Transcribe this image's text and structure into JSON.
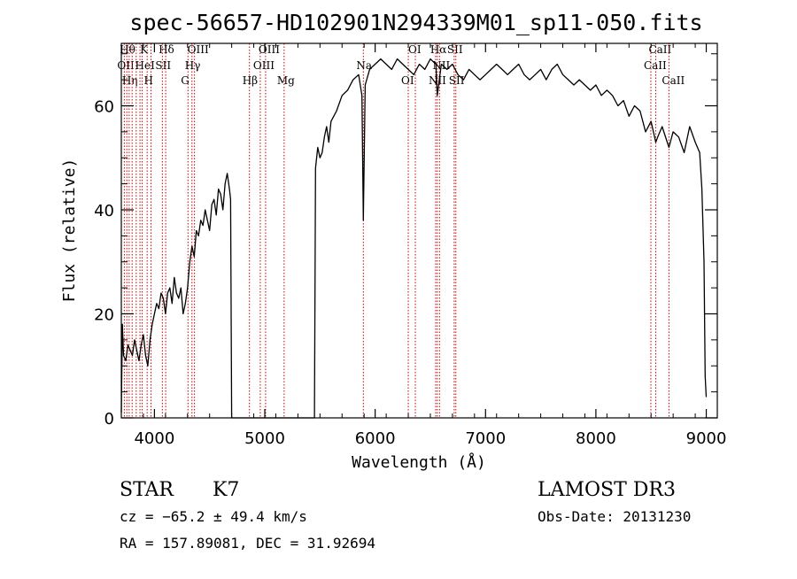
{
  "chart_data": {
    "type": "line",
    "title": "spec-56657-HD102901N294339M01_sp11-050.fits",
    "xlabel": "Wavelength (Å)",
    "ylabel": "Flux (relative)",
    "xlim": [
      3700,
      9100
    ],
    "ylim": [
      0,
      72
    ],
    "xticks": [
      4000,
      5000,
      6000,
      7000,
      8000,
      9000
    ],
    "yticks": [
      0,
      20,
      40,
      60
    ],
    "grid": false,
    "series": [
      {
        "line_color": "#000000",
        "x": [
          3700,
          3710,
          3720,
          3740,
          3760,
          3780,
          3800,
          3820,
          3840,
          3860,
          3880,
          3900,
          3920,
          3940,
          3960,
          3980,
          4000,
          4020,
          4040,
          4060,
          4080,
          4100,
          4120,
          4140,
          4160,
          4180,
          4200,
          4220,
          4240,
          4260,
          4280,
          4300,
          4320,
          4340,
          4360,
          4380,
          4400,
          4420,
          4440,
          4460,
          4480,
          4500,
          4520,
          4540,
          4560,
          4580,
          4600,
          4620,
          4640,
          4660,
          4680,
          4690,
          4700,
          4720,
          5450,
          5460,
          5480,
          5500,
          5520,
          5540,
          5560,
          5580,
          5600,
          5650,
          5700,
          5750,
          5800,
          5850,
          5880,
          5893,
          5910,
          5950,
          6000,
          6050,
          6100,
          6150,
          6200,
          6250,
          6300,
          6350,
          6400,
          6450,
          6500,
          6550,
          6563,
          6600,
          6650,
          6700,
          6750,
          6800,
          6850,
          6900,
          6950,
          7000,
          7050,
          7100,
          7150,
          7200,
          7250,
          7300,
          7350,
          7400,
          7450,
          7500,
          7550,
          7600,
          7650,
          7700,
          7750,
          7800,
          7850,
          7900,
          7950,
          8000,
          8050,
          8100,
          8150,
          8200,
          8250,
          8300,
          8350,
          8400,
          8450,
          8500,
          8542,
          8560,
          8600,
          8662,
          8700,
          8750,
          8800,
          8850,
          8900,
          8940,
          8960,
          8980,
          8990,
          9000
        ],
        "y": [
          1,
          18,
          12,
          11,
          14,
          13,
          12,
          15,
          13,
          11,
          14,
          16,
          12,
          10,
          15,
          18,
          20,
          22,
          21,
          24,
          23,
          20,
          24,
          25,
          22,
          27,
          24,
          23,
          25,
          20,
          22,
          25,
          30,
          33,
          31,
          36,
          35,
          38,
          37,
          40,
          38,
          36,
          41,
          42,
          39,
          44,
          43,
          40,
          45,
          47,
          44,
          42,
          0,
          0,
          0,
          48,
          52,
          50,
          51,
          54,
          56,
          53,
          57,
          59,
          62,
          63,
          65,
          66,
          62,
          38,
          64,
          67,
          68,
          69,
          68,
          67,
          69,
          68,
          67,
          66,
          68,
          67,
          69,
          68,
          62,
          68,
          67,
          68,
          66,
          65,
          67,
          66,
          65,
          66,
          67,
          68,
          67,
          66,
          67,
          68,
          66,
          65,
          66,
          67,
          65,
          67,
          68,
          66,
          65,
          64,
          65,
          64,
          63,
          64,
          62,
          63,
          62,
          60,
          61,
          58,
          60,
          59,
          55,
          57,
          53,
          54,
          56,
          52,
          55,
          54,
          51,
          56,
          53,
          51,
          44,
          30,
          8,
          4
        ]
      }
    ],
    "line_marks": [
      {
        "x": 3727,
        "label": "OII",
        "row": 1,
        "anchor": "start"
      },
      {
        "x": 3750,
        "label": "Hθ",
        "row": 0,
        "anchor": "start"
      },
      {
        "x": 3771,
        "label": "Hη",
        "row": 2,
        "anchor": "start"
      },
      {
        "x": 3798,
        "label": "",
        "row": 0,
        "anchor": "start"
      },
      {
        "x": 3835,
        "label": "",
        "row": 0,
        "anchor": "start"
      },
      {
        "x": 3869,
        "label": "",
        "row": 0,
        "anchor": "start"
      },
      {
        "x": 3889,
        "label": "HeI",
        "row": 1,
        "anchor": "start"
      },
      {
        "x": 3934,
        "label": "K",
        "row": 0,
        "anchor": "start"
      },
      {
        "x": 3969,
        "label": "H",
        "row": 2,
        "anchor": "start"
      },
      {
        "x": 4072,
        "label": "SII",
        "row": 1,
        "anchor": "start"
      },
      {
        "x": 4102,
        "label": "Hδ",
        "row": 0,
        "anchor": "start"
      },
      {
        "x": 4304,
        "label": "G",
        "row": 2,
        "anchor": "start"
      },
      {
        "x": 4340,
        "label": "Hγ",
        "row": 1,
        "anchor": "start"
      },
      {
        "x": 4363,
        "label": "OIII",
        "row": 0,
        "anchor": "start"
      },
      {
        "x": 4861,
        "label": "Hβ",
        "row": 2,
        "anchor": "start"
      },
      {
        "x": 4959,
        "label": "OIII",
        "row": 1,
        "anchor": "start"
      },
      {
        "x": 5007,
        "label": "OIII",
        "row": 0,
        "anchor": "start"
      },
      {
        "x": 5175,
        "label": "Mg",
        "row": 2,
        "anchor": "start"
      },
      {
        "x": 5893,
        "label": "Na",
        "row": 1,
        "anchor": "start"
      },
      {
        "x": 6300,
        "label": "OI",
        "row": 2,
        "anchor": "start"
      },
      {
        "x": 6364,
        "label": "OI",
        "row": 0,
        "anchor": "start"
      },
      {
        "x": 6548,
        "label": "NII",
        "row": 2,
        "anchor": "start"
      },
      {
        "x": 6563,
        "label": "Hα",
        "row": 0,
        "anchor": "start"
      },
      {
        "x": 6583,
        "label": "NII",
        "row": 1,
        "anchor": "start"
      },
      {
        "x": 6716,
        "label": "SII",
        "row": 0,
        "anchor": "start"
      },
      {
        "x": 6731,
        "label": "SII",
        "row": 2,
        "anchor": "start"
      },
      {
        "x": 8498,
        "label": "CaII",
        "row": 1,
        "anchor": "start"
      },
      {
        "x": 8542,
        "label": "CaII",
        "row": 0,
        "anchor": "start"
      },
      {
        "x": 8662,
        "label": "CaII",
        "row": 2,
        "anchor": "start"
      }
    ],
    "line_mark_color": "#cc0000"
  },
  "info": {
    "object_class": "STAR",
    "subclass": "K7",
    "survey": "LAMOST DR3",
    "cz": "cz = −65.2 ± 49.4 km/s",
    "obs_date": "Obs-Date: 20131230",
    "coords": "RA = 157.89081, DEC =  31.92694"
  }
}
